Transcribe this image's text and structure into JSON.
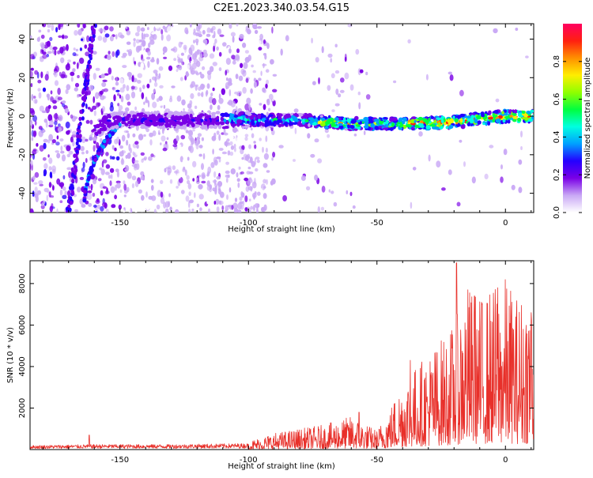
{
  "page_title": "C2E1.2023.340.03.54.G15",
  "chart_data": [
    {
      "type": "heatmap",
      "xlabel": "Height of straight line (km)",
      "ylabel": "Frequency (Hz)",
      "xlim": [
        -185,
        11
      ],
      "ylim": [
        -50,
        48
      ],
      "x_ticks": [
        -150,
        -100,
        -50,
        0
      ],
      "x_tick_labels": [
        "-150",
        "-100",
        "-50",
        "0"
      ],
      "y_ticks": [
        -40,
        -20,
        0,
        20,
        40
      ],
      "y_tick_labels": [
        "-40",
        "-20",
        "0",
        "20",
        "40"
      ],
      "ridge": {
        "x": [
          -160,
          -155,
          -150,
          -120,
          -100,
          -80,
          -60,
          -40,
          -20,
          0,
          10
        ],
        "y": [
          -8,
          -3,
          -2,
          -2,
          -2,
          -2,
          -4,
          -4,
          -3,
          0,
          0
        ]
      },
      "diagonal": {
        "x": [
          -170,
          -160
        ],
        "y": [
          -50,
          48
        ]
      },
      "colorbar": {
        "label": "Normalized spectral amplitude",
        "range": [
          0,
          1
        ],
        "ticks": [
          0.0,
          0.2,
          0.4,
          0.6,
          0.8
        ],
        "tick_labels": [
          "0.0",
          "0.2",
          "0.4",
          "0.6",
          "0.8"
        ],
        "colors": [
          "#ffffff",
          "#c9a8f5",
          "#7a00e6",
          "#2400ff",
          "#00a0ff",
          "#00ffe0",
          "#00ff40",
          "#90ff00",
          "#ffee00",
          "#ff9000",
          "#ff2010",
          "#ff0060"
        ]
      }
    },
    {
      "type": "line",
      "xlabel": "Height of straight line (km)",
      "ylabel": "SNR (10 * v/v)",
      "xlim": [
        -185,
        11
      ],
      "ylim": [
        0,
        9100
      ],
      "x_ticks": [
        -150,
        -100,
        -50,
        0
      ],
      "x_tick_labels": [
        "-150",
        "-100",
        "-50",
        "0"
      ],
      "y_ticks": [
        2000,
        4000,
        6000,
        8000
      ],
      "y_tick_labels": [
        "2000",
        "4000",
        "6000",
        "8000"
      ],
      "color": "#e8302a",
      "envelope": {
        "x": [
          -185,
          -160,
          -130,
          -100,
          -90,
          -70,
          -60,
          -50,
          -45,
          -40,
          -30,
          -20,
          -15,
          -10,
          0,
          5,
          11
        ],
        "y": [
          200,
          250,
          250,
          300,
          600,
          900,
          1200,
          700,
          1500,
          2500,
          3500,
          4500,
          6000,
          5500,
          6200,
          5500,
          6000
        ]
      },
      "peaks": [
        {
          "x": -162,
          "y": 700
        },
        {
          "x": -57,
          "y": 1800
        },
        {
          "x": -37,
          "y": 4300
        },
        {
          "x": -19,
          "y": 9000
        },
        {
          "x": -12,
          "y": 7400
        },
        {
          "x": -3,
          "y": 7800
        },
        {
          "x": 10,
          "y": 6600
        }
      ]
    }
  ]
}
